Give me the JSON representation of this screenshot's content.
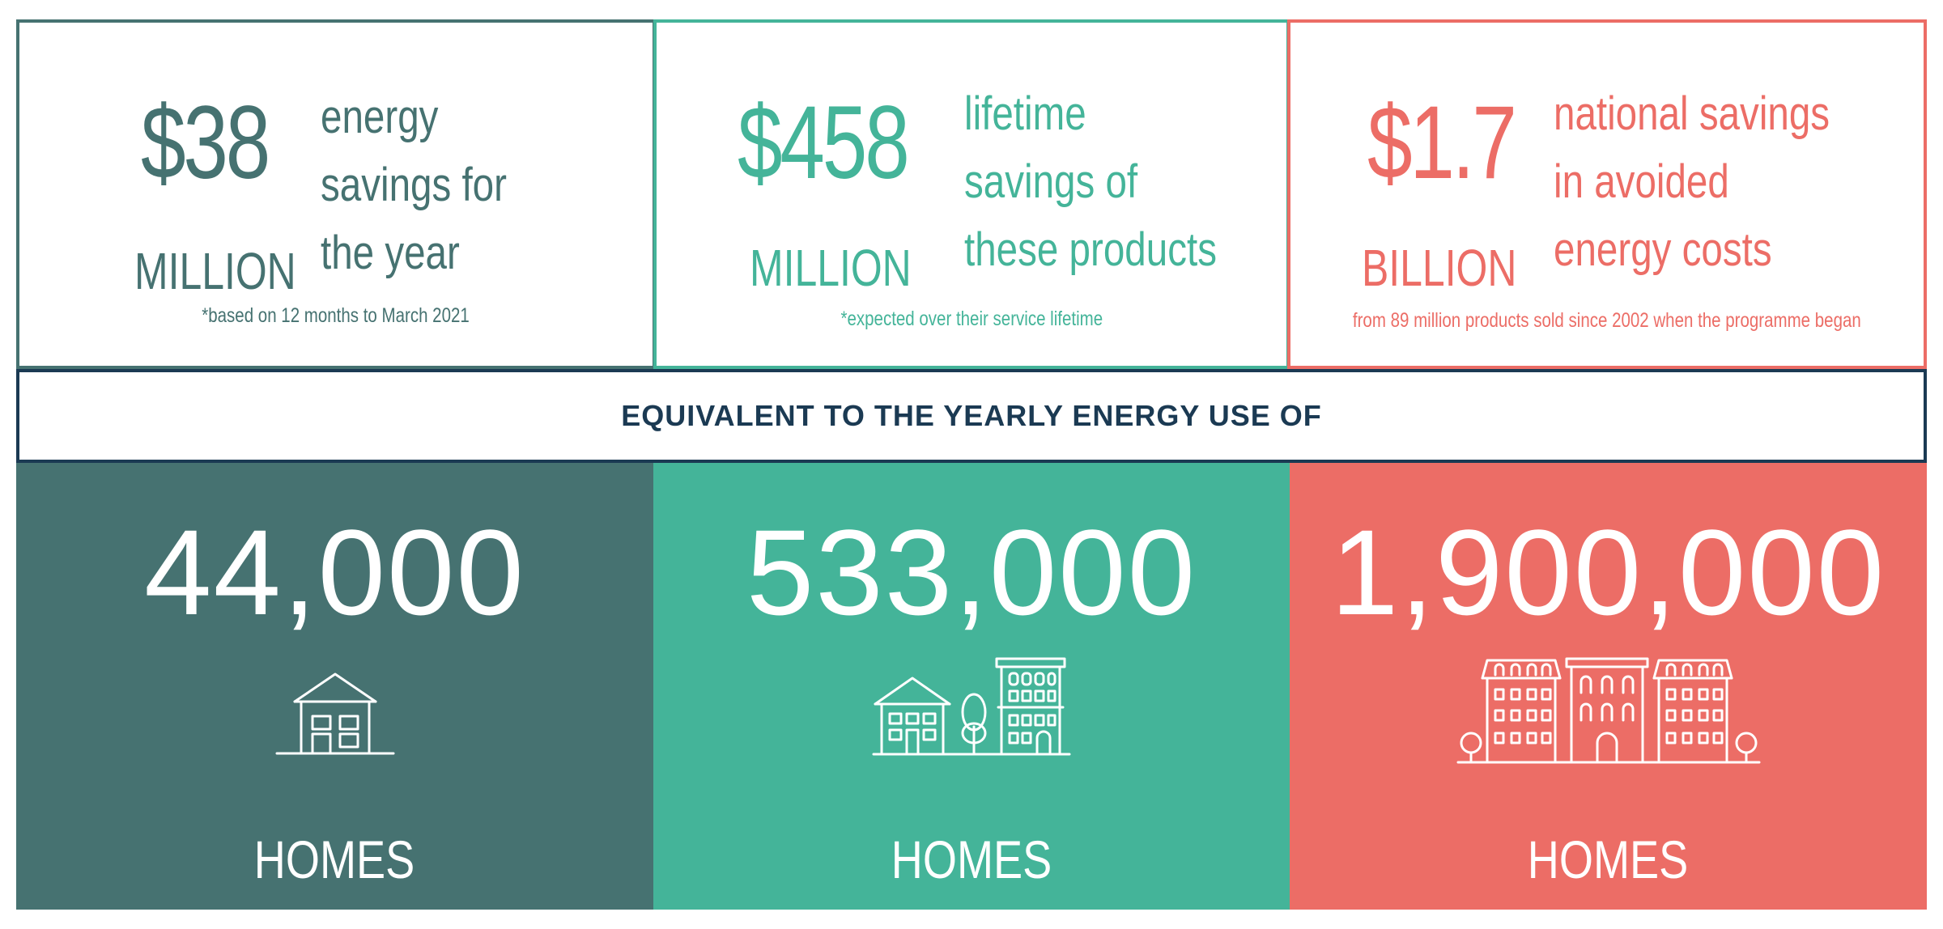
{
  "stats": [
    {
      "value": "$38",
      "unit": "MILLION",
      "desc": [
        "energy",
        "savings for",
        "the year"
      ],
      "footnote": "*based on 12 months to March 2021",
      "color": "#467271"
    },
    {
      "value": "$458",
      "unit": "MILLION",
      "desc": [
        "lifetime",
        "savings of",
        "these products"
      ],
      "footnote": "*expected over their service lifetime",
      "color": "#44b499"
    },
    {
      "value": "$1.7",
      "unit": "BILLION",
      "desc": [
        "national savings",
        "in avoided",
        "energy costs"
      ],
      "footnote": "from 89 million products sold since 2002 when the programme began",
      "color": "#ec6d66"
    }
  ],
  "banner": "EQUIVALENT TO THE YEARLY ENERGY USE OF",
  "homes": [
    {
      "value": "44,000",
      "label": "HOMES",
      "icon": "house-icon",
      "color": "#467271"
    },
    {
      "value": "533,000",
      "label": "HOMES",
      "icon": "house-tree-building-icon",
      "color": "#44b499"
    },
    {
      "value": "1,900,000",
      "label": "HOMES",
      "icon": "apartment-row-icon",
      "color": "#ec6d66"
    }
  ]
}
